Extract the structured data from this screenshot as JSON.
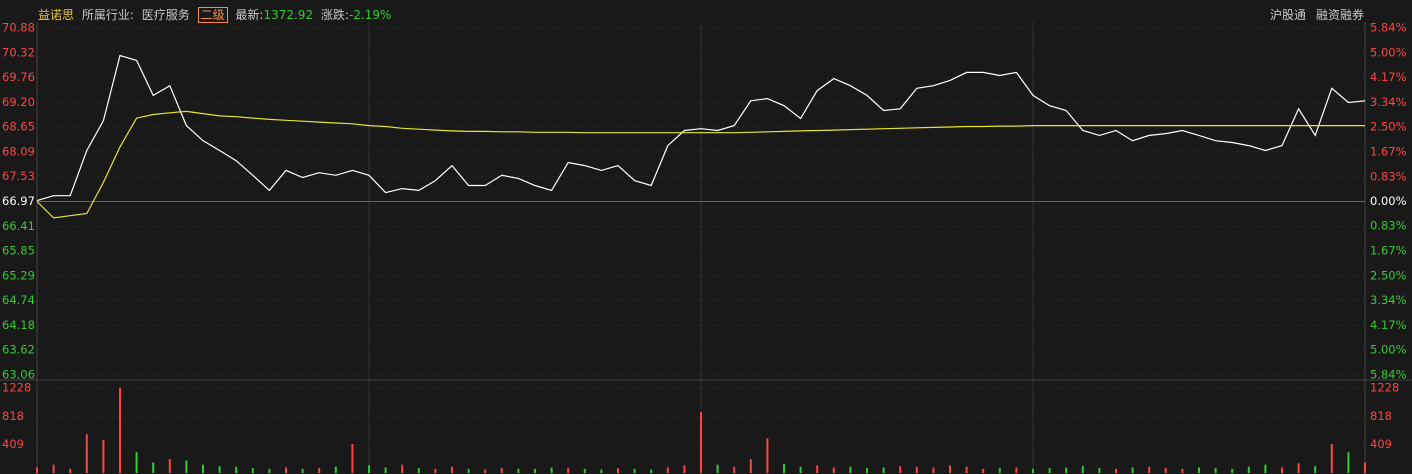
{
  "header": {
    "name": "益诺思",
    "industry_label": "所属行业:",
    "industry": "医疗服务",
    "level": "二级",
    "latest_label": "最新:",
    "latest": "1372.92",
    "change_label": "涨跌:",
    "change": "-2.19%",
    "links": [
      "沪股通",
      "融资融券"
    ]
  },
  "chart_data": [
    {
      "type": "line",
      "ylim": [
        63.06,
        70.88
      ],
      "yticks": [
        70.88,
        70.32,
        69.76,
        69.2,
        68.65,
        68.09,
        67.53,
        66.97,
        66.41,
        65.85,
        65.29,
        64.74,
        64.18,
        63.62,
        63.06
      ],
      "yticks_labels": [
        "70.88",
        "70.32",
        "69.76",
        "69.20",
        "68.65",
        "68.09",
        "67.53",
        "66.97",
        "66.41",
        "65.85",
        "65.29",
        "64.74",
        "64.18",
        "63.62",
        "63.06"
      ],
      "y2lim": [
        -5.84,
        5.84
      ],
      "y2ticks": [
        {
          "value": 5.84,
          "label": "5.84%"
        },
        {
          "value": 5.0,
          "label": "5.00%"
        },
        {
          "value": 4.17,
          "label": "4.17%"
        },
        {
          "value": 3.34,
          "label": "3.34%"
        },
        {
          "value": 2.5,
          "label": "2.50%"
        },
        {
          "value": 1.67,
          "label": "1.67%"
        },
        {
          "value": 0.83,
          "label": "0.83%"
        },
        {
          "value": 0,
          "label": "0.00%"
        },
        {
          "value": -0.83,
          "label": "0.83%"
        },
        {
          "value": -1.67,
          "label": "1.67%"
        },
        {
          "value": -2.5,
          "label": "2.50%"
        },
        {
          "value": -3.34,
          "label": "3.34%"
        },
        {
          "value": -4.17,
          "label": "4.17%"
        },
        {
          "value": -5.0,
          "label": "5.00%"
        },
        {
          "value": -5.84,
          "label": "5.84%"
        }
      ],
      "up_color": "#ff4444",
      "down_color": "#33cc33",
      "grid": true,
      "series": [
        {
          "color": "#ffffff",
          "values": [
            66.99,
            67.1,
            67.1,
            68.12,
            68.79,
            70.26,
            70.15,
            69.36,
            69.58,
            68.68,
            68.34,
            68.12,
            67.89,
            67.56,
            67.22,
            67.67,
            67.51,
            67.62,
            67.56,
            67.67,
            67.56,
            67.17,
            67.26,
            67.22,
            67.44,
            67.78,
            67.33,
            67.33,
            67.56,
            67.49,
            67.33,
            67.22,
            67.85,
            67.78,
            67.67,
            67.78,
            67.44,
            67.33,
            68.23,
            68.57,
            68.61,
            68.57,
            68.68,
            69.24,
            69.29,
            69.13,
            68.84,
            69.47,
            69.74,
            69.58,
            69.36,
            69.02,
            69.06,
            69.52,
            69.58,
            69.7,
            69.88,
            69.88,
            69.81,
            69.88,
            69.36,
            69.13,
            69.02,
            68.57,
            68.46,
            68.57,
            68.34,
            68.46,
            68.5,
            68.57,
            68.46,
            68.34,
            68.3,
            68.23,
            68.12,
            68.23,
            69.06,
            68.46,
            69.52,
            69.2,
            69.24
          ]
        },
        {
          "color": "#e6e62e",
          "values": [
            66.97,
            66.6,
            66.65,
            66.7,
            67.4,
            68.2,
            68.85,
            68.93,
            68.97,
            69.0,
            68.95,
            68.9,
            68.88,
            68.85,
            68.82,
            68.8,
            68.78,
            68.76,
            68.74,
            68.72,
            68.68,
            68.66,
            68.62,
            68.6,
            68.58,
            68.56,
            68.55,
            68.55,
            68.54,
            68.54,
            68.53,
            68.53,
            68.53,
            68.52,
            68.52,
            68.52,
            68.52,
            68.52,
            68.52,
            68.52,
            68.52,
            68.52,
            68.52,
            68.53,
            68.54,
            68.55,
            68.56,
            68.57,
            68.58,
            68.59,
            68.6,
            68.61,
            68.62,
            68.63,
            68.64,
            68.65,
            68.66,
            68.66,
            68.67,
            68.67,
            68.68,
            68.68,
            68.68,
            68.68,
            68.68,
            68.68,
            68.68,
            68.68,
            68.68,
            68.68,
            68.68,
            68.68,
            68.68,
            68.68,
            68.68,
            68.68,
            68.68,
            68.68,
            68.68,
            68.68,
            68.68
          ]
        }
      ]
    },
    {
      "type": "bar",
      "ylim": [
        0,
        1228
      ],
      "yticks": [
        409,
        818,
        1228
      ],
      "values": [
        80,
        120,
        60,
        560,
        480,
        1228,
        300,
        150,
        200,
        180,
        120,
        100,
        90,
        70,
        60,
        80,
        60,
        70,
        90,
        420,
        110,
        80,
        120,
        70,
        60,
        90,
        60,
        50,
        70,
        60,
        60,
        80,
        70,
        60,
        50,
        70,
        60,
        50,
        80,
        110,
        880,
        120,
        90,
        200,
        500,
        130,
        90,
        110,
        80,
        90,
        70,
        80,
        100,
        90,
        80,
        110,
        90,
        60,
        70,
        80,
        60,
        70,
        80,
        100,
        70,
        60,
        80,
        90,
        70,
        60,
        80,
        70,
        60,
        90,
        120,
        80,
        140,
        100,
        420,
        300,
        150
      ]
    }
  ]
}
